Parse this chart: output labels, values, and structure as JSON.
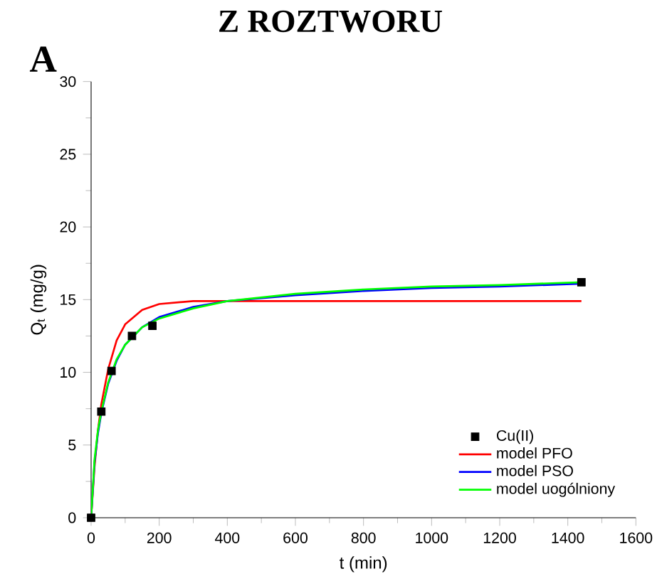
{
  "chart_data": {
    "type": "line",
    "title": "Z ROZTWORU",
    "annotations": [
      "A"
    ],
    "xlabel": "t (min)",
    "ylabel": "Q$_{t}$ (mg/g)",
    "xlim": [
      0,
      1600
    ],
    "ylim": [
      0,
      30
    ],
    "xticks": [
      0,
      200,
      400,
      600,
      800,
      1000,
      1200,
      1400,
      1600
    ],
    "yticks": [
      0,
      5,
      10,
      15,
      20,
      25,
      30
    ],
    "grid": false,
    "legend": "bottom right",
    "series": [
      {
        "name": "Cu(II)",
        "type": "scatter",
        "marker": "square",
        "color": "#000000",
        "x": [
          0,
          30,
          60,
          120,
          180,
          1440
        ],
        "values": [
          0,
          7.3,
          10.1,
          12.5,
          13.2,
          16.2
        ]
      },
      {
        "name": "model PFO",
        "marker": "none",
        "color": "#ff0000",
        "x": [
          0,
          10,
          20,
          30,
          50,
          75,
          100,
          150,
          200,
          300,
          400,
          1440
        ],
        "values": [
          0,
          3.5,
          6,
          7.8,
          10.2,
          12.2,
          13.3,
          14.3,
          14.7,
          14.9,
          14.9,
          14.9
        ]
      },
      {
        "name": "model  PSO",
        "marker": "none",
        "color": "#0000ff",
        "x": [
          0,
          10,
          20,
          30,
          50,
          75,
          100,
          150,
          200,
          300,
          400,
          600,
          800,
          1000,
          1200,
          1440
        ],
        "values": [
          0,
          3.8,
          5.8,
          7.2,
          9.2,
          10.8,
          11.9,
          13.1,
          13.8,
          14.5,
          14.9,
          15.3,
          15.6,
          15.8,
          15.9,
          16.1
        ]
      },
      {
        "name": "model uogólniony",
        "marker": "none",
        "color": "#00ff00",
        "x": [
          0,
          10,
          20,
          30,
          50,
          75,
          100,
          150,
          200,
          300,
          400,
          600,
          800,
          1000,
          1200,
          1440
        ],
        "values": [
          0,
          4.0,
          6.0,
          7.3,
          9.3,
          10.9,
          11.9,
          13.1,
          13.7,
          14.4,
          14.9,
          15.4,
          15.7,
          15.9,
          16.0,
          16.2
        ]
      }
    ]
  }
}
